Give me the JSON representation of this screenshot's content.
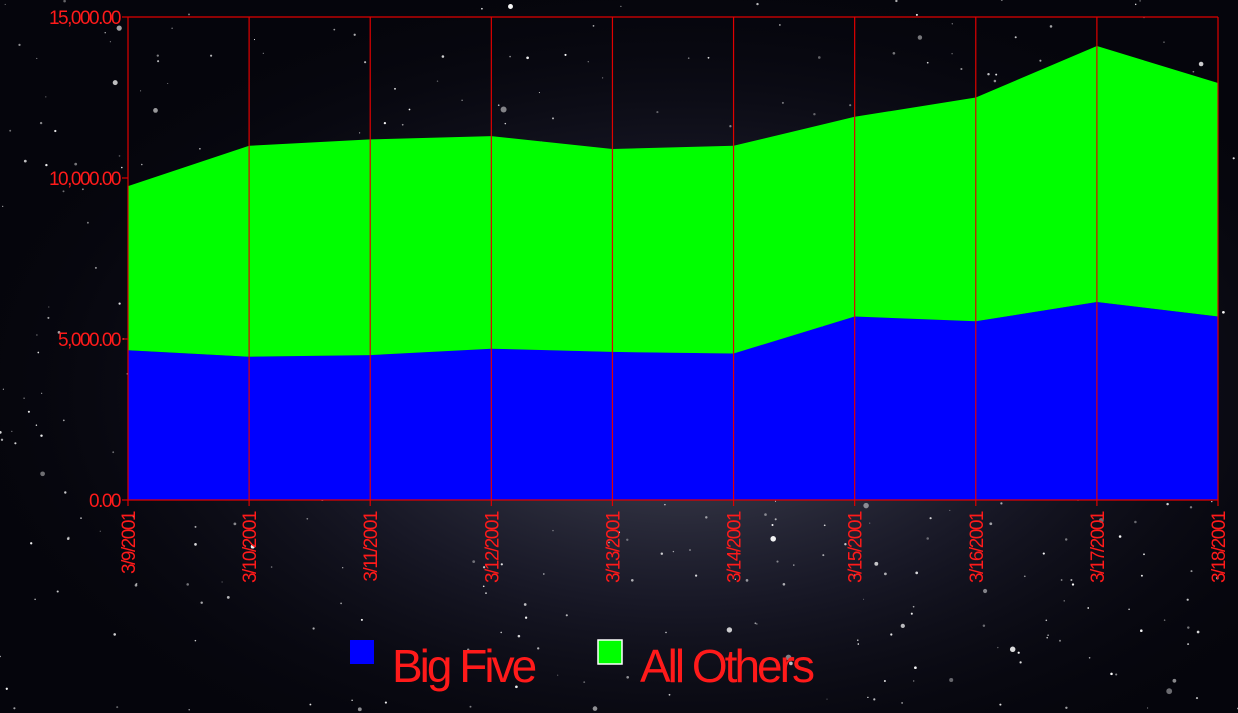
{
  "chart_data": {
    "type": "area",
    "stacked": true,
    "title": "",
    "xlabel": "",
    "ylabel": "",
    "categories": [
      "3/9/2001",
      "3/10/2001",
      "3/11/2001",
      "3/12/2001",
      "3/13/2001",
      "3/14/2001",
      "3/15/2001",
      "3/16/2001",
      "3/17/2001",
      "3/18/2001"
    ],
    "y_ticks": [
      "0.00",
      "5,000.00",
      "10,000.00",
      "15,000.00"
    ],
    "ylim": [
      0,
      15000
    ],
    "grid": "vertical",
    "legend_position": "bottom",
    "series": [
      {
        "name": "Big Five",
        "color": "#0000ff",
        "values": [
          4650,
          4450,
          4500,
          4700,
          4600,
          4550,
          5700,
          5550,
          6150,
          5700
        ]
      },
      {
        "name": "All Others",
        "color": "#00ff00",
        "values": [
          5100,
          6550,
          6700,
          6600,
          6300,
          6450,
          6200,
          6950,
          7950,
          7250
        ]
      }
    ],
    "colors": {
      "axis": "#e00000",
      "text": "#ff1a1a",
      "background": "#05050c"
    }
  }
}
